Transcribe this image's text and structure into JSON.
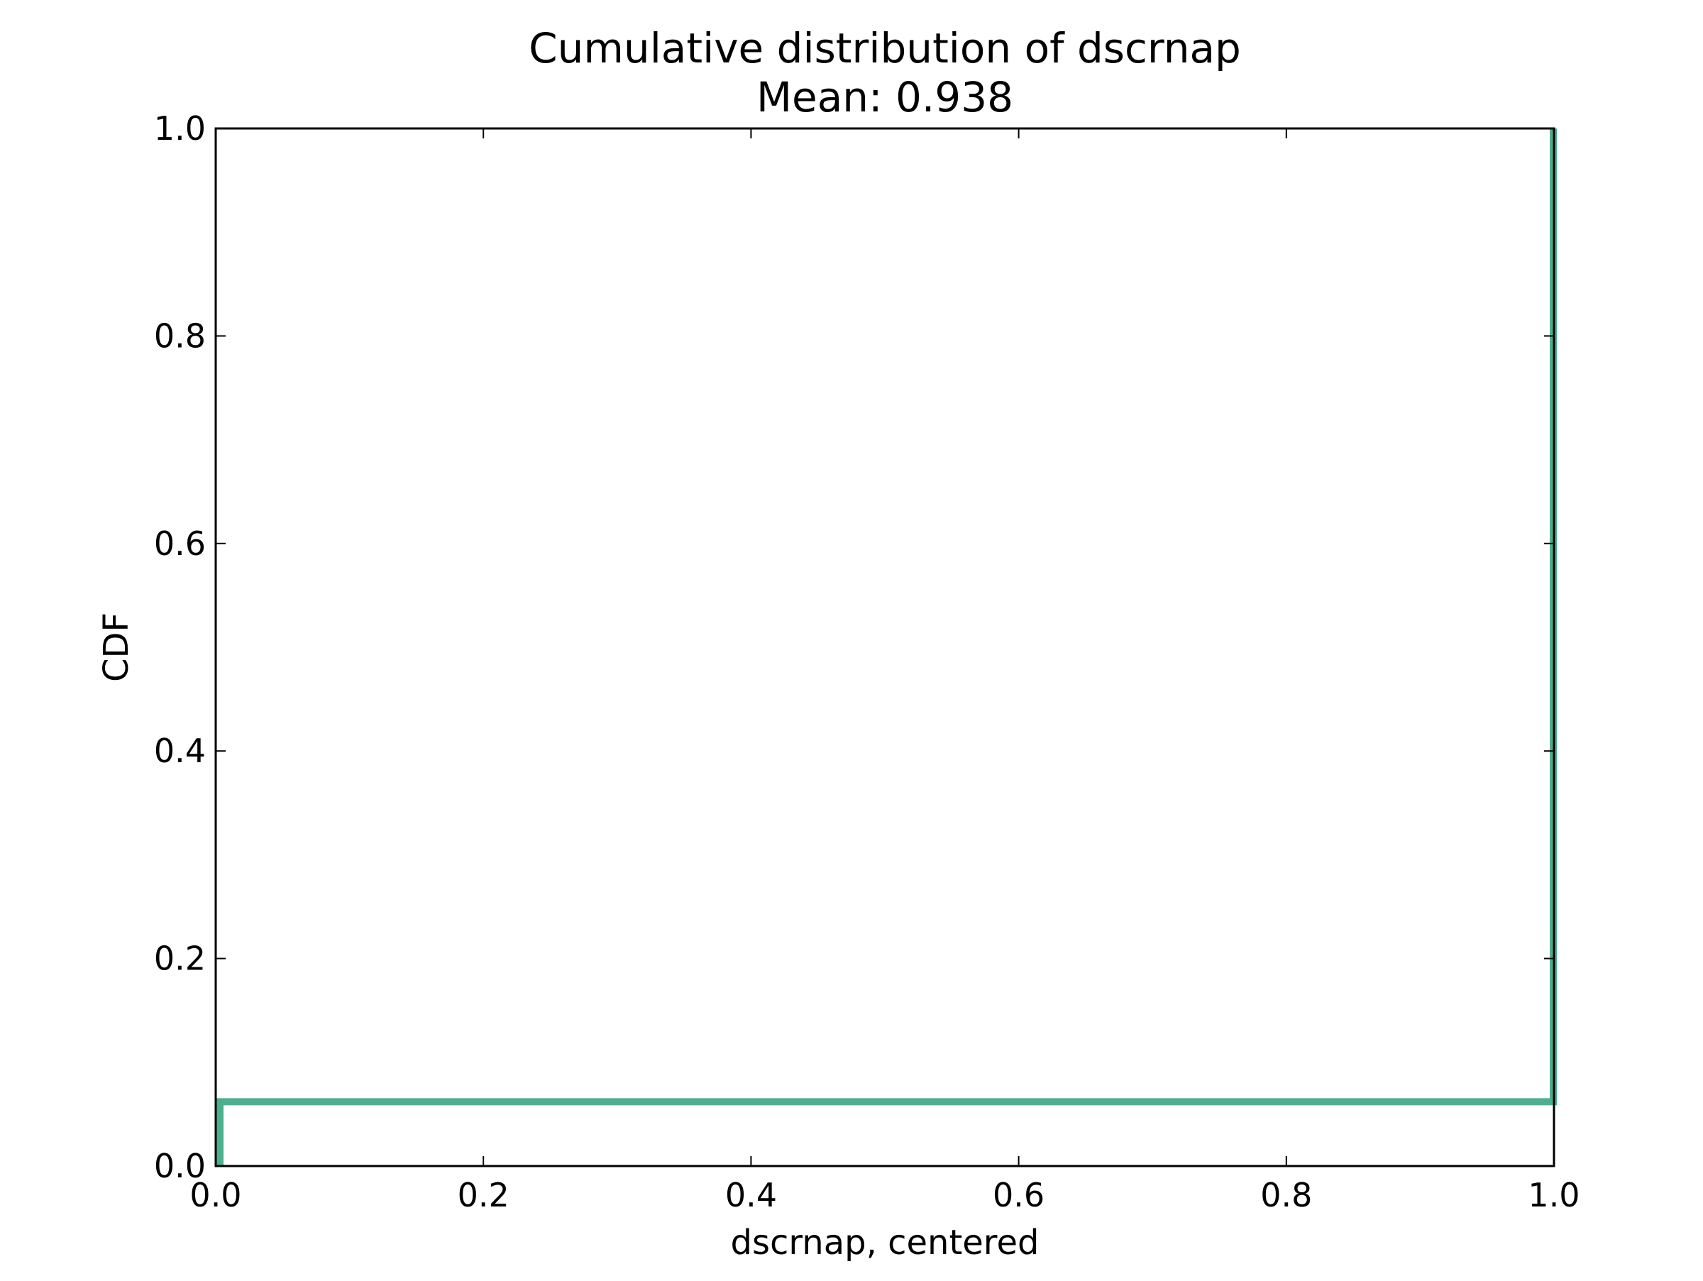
{
  "chart_data": {
    "type": "line",
    "title": "Cumulative distribution of dscrnap",
    "subtitle": "Mean: 0.938",
    "xlabel": "dscrnap, centered",
    "ylabel": "CDF",
    "xlim": [
      0.0,
      1.0
    ],
    "ylim": [
      0.0,
      1.0
    ],
    "xticks": [
      0.0,
      0.2,
      0.4,
      0.6,
      0.8,
      1.0
    ],
    "xtick_labels": [
      "0.0",
      "0.2",
      "0.4",
      "0.6",
      "0.8",
      "1.0"
    ],
    "yticks": [
      0.0,
      0.2,
      0.4,
      0.6,
      0.8,
      1.0
    ],
    "ytick_labels": [
      "0.0",
      "0.2",
      "0.4",
      "0.6",
      "0.8",
      "1.0"
    ],
    "grid": false,
    "series": [
      {
        "color": "#4daf8f",
        "step": true,
        "x": [
          0.0,
          0.0,
          1.0,
          1.0
        ],
        "y": [
          0.0,
          0.062,
          0.062,
          1.0
        ]
      }
    ]
  }
}
